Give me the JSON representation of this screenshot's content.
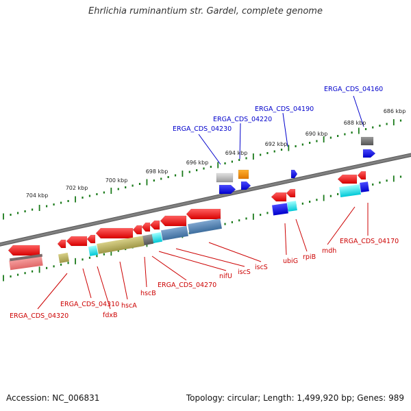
{
  "title": "Ehrlichia ruminantium str. Gardel, complete genome",
  "footer": {
    "accession": "Accession: NC_006831",
    "summary": "Topology: circular; Length: 1,499,920 bp; Genes: 989"
  },
  "colors": {
    "backbone": "#808080",
    "forward_label": "#0000cc",
    "reverse_label": "#cc0000",
    "tick": "#1a7a1a"
  },
  "scale_labels": [
    "686 kbp",
    "688 kbp",
    "690 kbp",
    "692 kbp",
    "694 kbp",
    "696 kbp",
    "698 kbp",
    "700 kbp",
    "702 kbp",
    "704 kbp"
  ],
  "forward_labels": [
    "ERGA_CDS_04160",
    "ERGA_CDS_04190",
    "ERGA_CDS_04220",
    "ERGA_CDS_04230"
  ],
  "reverse_labels": [
    "ERGA_CDS_04170",
    "mdh",
    "rpiB",
    "ubiG",
    "iscS",
    "iscS",
    "nifU",
    "ERGA_CDS_04270",
    "hscB",
    "hscA",
    "fdxB",
    "ERGA_CDS_04310",
    "ERGA_CDS_04320"
  ]
}
